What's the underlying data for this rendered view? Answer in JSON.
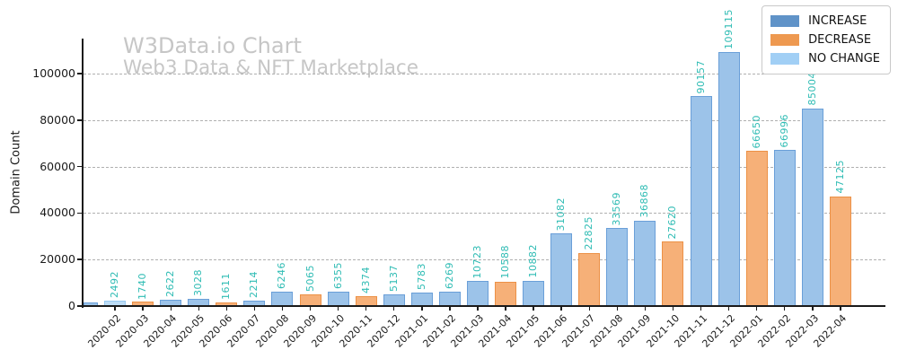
{
  "watermark": {
    "line1": "W3Data.io Chart",
    "line2": "Web3 Data & NFT Marketplace"
  },
  "legend": {
    "items": [
      {
        "label": "INCREASE",
        "color": "#6093c8"
      },
      {
        "label": "DECREASE",
        "color": "#ee9950"
      },
      {
        "label": "NO CHANGE",
        "color": "#a1cff5"
      }
    ]
  },
  "colors": {
    "increase_fill": "#9cc3e9",
    "increase_edge": "#6a9fd8",
    "decrease_fill": "#f6b078",
    "decrease_edge": "#ec9146",
    "no_change_fill": "#bcdcf5",
    "no_change_edge": "#97c8ef",
    "bar_label": "#2fbcb4",
    "grid": "#b0b0b0",
    "axis": "#1a1a1a",
    "watermark": "#c6c6c6"
  },
  "chart_data": {
    "type": "bar",
    "ylabel": "Domain Count",
    "ylim": [
      0,
      115000
    ],
    "yticks": [
      0,
      20000,
      40000,
      60000,
      80000,
      100000
    ],
    "grid": "horizontal-dashed",
    "legend_position": "upper-right",
    "legend_entries": [
      "INCREASE",
      "DECREASE",
      "NO CHANGE"
    ],
    "points": [
      {
        "category": "",
        "value": 1500,
        "change": "increase",
        "show_label": false
      },
      {
        "category": "2020-02",
        "value": 2492,
        "change": "no_change",
        "show_label": true
      },
      {
        "category": "2020-03",
        "value": 1740,
        "change": "decrease",
        "show_label": true
      },
      {
        "category": "2020-04",
        "value": 2622,
        "change": "increase",
        "show_label": true
      },
      {
        "category": "2020-05",
        "value": 3028,
        "change": "increase",
        "show_label": true
      },
      {
        "category": "2020-06",
        "value": 1611,
        "change": "decrease",
        "show_label": true
      },
      {
        "category": "2020-07",
        "value": 2214,
        "change": "increase",
        "show_label": true
      },
      {
        "category": "2020-08",
        "value": 6246,
        "change": "increase",
        "show_label": true
      },
      {
        "category": "2020-09",
        "value": 5065,
        "change": "decrease",
        "show_label": true
      },
      {
        "category": "2020-10",
        "value": 6355,
        "change": "increase",
        "show_label": true
      },
      {
        "category": "2020-11",
        "value": 4374,
        "change": "decrease",
        "show_label": true
      },
      {
        "category": "2020-12",
        "value": 5137,
        "change": "increase",
        "show_label": true
      },
      {
        "category": "2021-01",
        "value": 5783,
        "change": "increase",
        "show_label": true
      },
      {
        "category": "2021-02",
        "value": 6269,
        "change": "increase",
        "show_label": true
      },
      {
        "category": "2021-03",
        "value": 10723,
        "change": "increase",
        "show_label": true
      },
      {
        "category": "2021-04",
        "value": 10588,
        "change": "decrease",
        "show_label": true
      },
      {
        "category": "2021-05",
        "value": 10882,
        "change": "increase",
        "show_label": true
      },
      {
        "category": "2021-06",
        "value": 31082,
        "change": "increase",
        "show_label": true
      },
      {
        "category": "2021-07",
        "value": 22825,
        "change": "decrease",
        "show_label": true
      },
      {
        "category": "2021-08",
        "value": 33569,
        "change": "increase",
        "show_label": true
      },
      {
        "category": "2021-09",
        "value": 36868,
        "change": "increase",
        "show_label": true
      },
      {
        "category": "2021-10",
        "value": 27620,
        "change": "decrease",
        "show_label": true
      },
      {
        "category": "2021-11",
        "value": 90157,
        "change": "increase",
        "show_label": true
      },
      {
        "category": "2021-12",
        "value": 109115,
        "change": "increase",
        "show_label": true
      },
      {
        "category": "2022-01",
        "value": 66650,
        "change": "decrease",
        "show_label": true
      },
      {
        "category": "2022-02",
        "value": 66996,
        "change": "increase",
        "show_label": true
      },
      {
        "category": "2022-03",
        "value": 85004,
        "change": "increase",
        "show_label": true
      },
      {
        "category": "2022-04",
        "value": 47125,
        "change": "decrease",
        "show_label": true
      }
    ]
  }
}
